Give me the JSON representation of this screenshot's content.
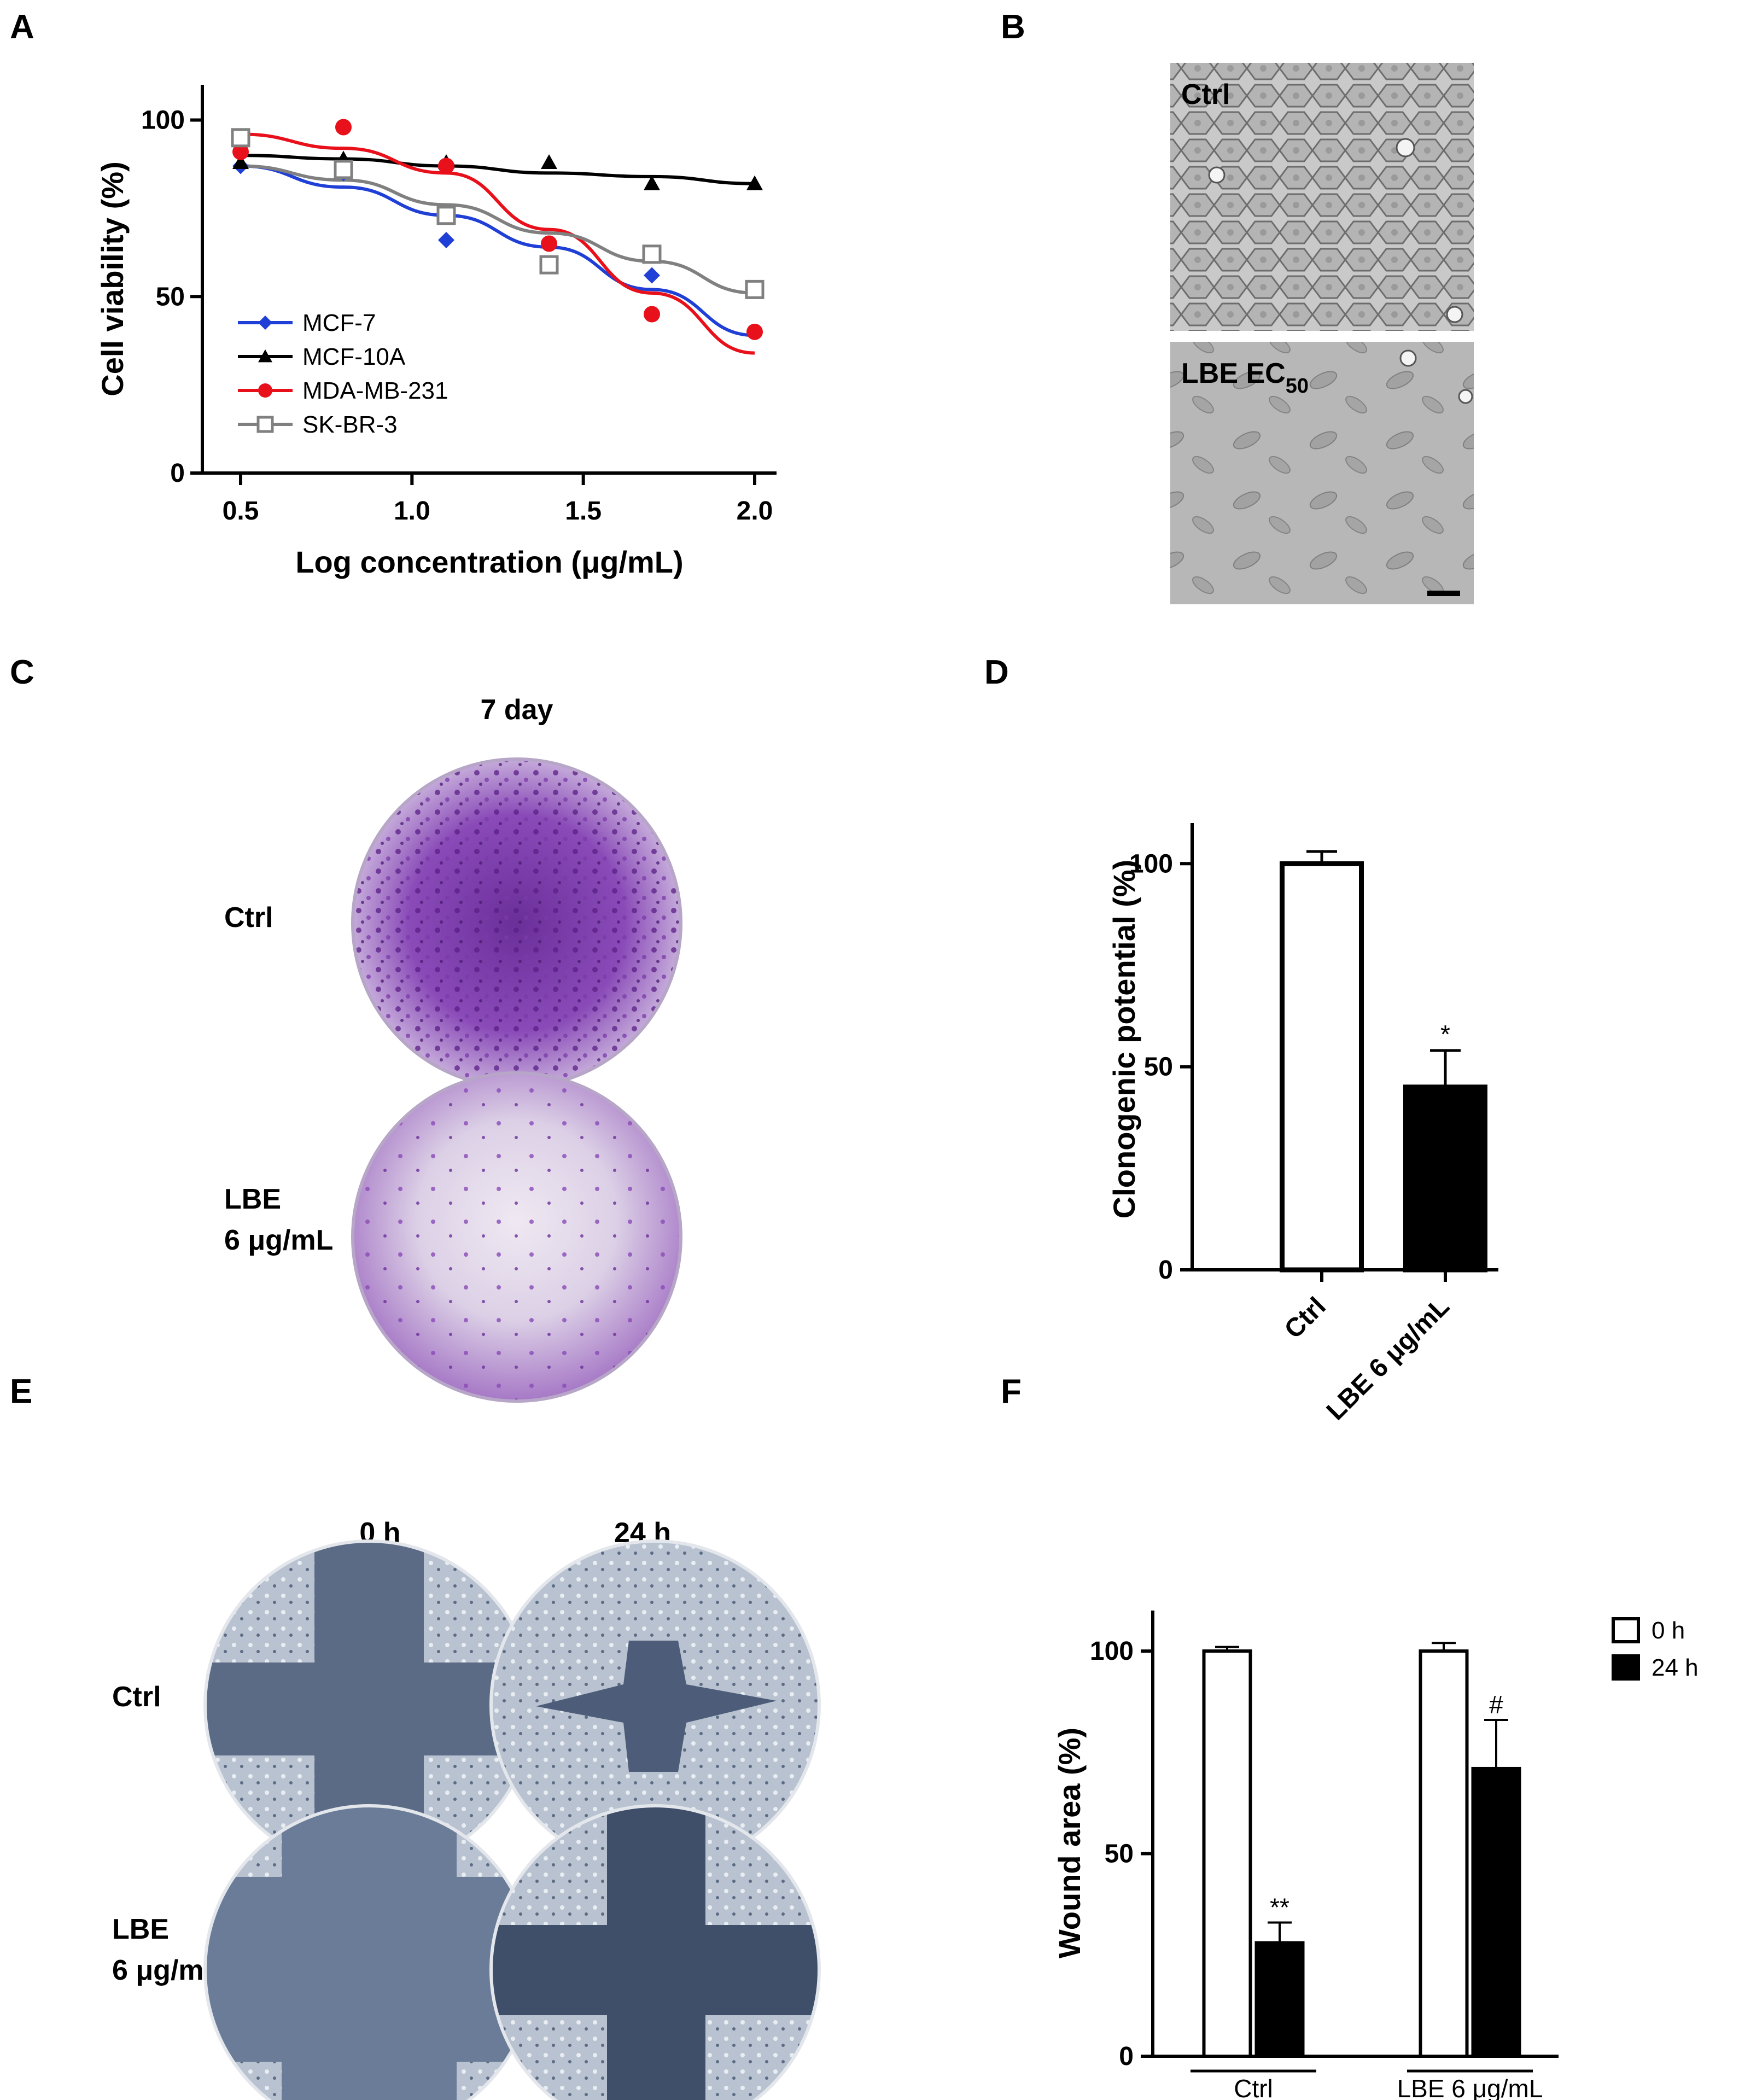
{
  "panels": [
    "A",
    "B",
    "C",
    "D",
    "E",
    "F"
  ],
  "colors": {
    "mcf7": "#1f3fd6",
    "mcf10a": "#000000",
    "mda": "#e8101a",
    "skbr3": "#808080"
  },
  "panel_b": {
    "ctrl_label": "Ctrl",
    "lbe_label": "LBE EC",
    "lbe_sub": "50"
  },
  "panel_c": {
    "title": "7 day",
    "row_ctrl": "Ctrl",
    "row_lbe_1": "LBE",
    "row_lbe_2": "6 μg/mL"
  },
  "panel_e": {
    "col_0h": "0 h",
    "col_24h": "24 h",
    "row_ctrl": "Ctrl",
    "row_lbe_1": "LBE",
    "row_lbe_2": "6 μg/mL"
  },
  "chart_data": [
    {
      "panel": "A",
      "type": "scatter",
      "xlabel": "Log concentration (μg/mL)",
      "ylabel": "Cell viability (%)",
      "xlim": [
        0.4,
        2.1
      ],
      "ylim": [
        0,
        110
      ],
      "xticks": [
        "0.5",
        "1.0",
        "1.5",
        "2.0"
      ],
      "yticks": [
        "0",
        "50",
        "100"
      ],
      "legend_position": "bottom-left",
      "x": [
        0.5,
        0.8,
        1.1,
        1.4,
        1.7,
        2.0
      ],
      "series": [
        {
          "name": "MCF-7",
          "marker": "diamond",
          "color": "#1f3fd6",
          "values": [
            87,
            85,
            66,
            59,
            56,
            40
          ],
          "fit": [
            87,
            81,
            73,
            64,
            52,
            39
          ]
        },
        {
          "name": "MCF-10A",
          "marker": "triangle",
          "color": "#000000",
          "values": [
            88,
            89,
            88,
            88,
            82,
            82
          ],
          "fit": [
            90,
            89,
            87,
            85,
            84,
            82
          ]
        },
        {
          "name": "MDA-MB-231",
          "marker": "circle",
          "color": "#e8101a",
          "values": [
            91,
            98,
            87,
            65,
            45,
            40
          ],
          "fit": [
            96,
            92,
            85,
            69,
            51,
            34
          ]
        },
        {
          "name": "SK-BR-3",
          "marker": "square-open",
          "color": "#808080",
          "values": [
            95,
            86,
            73,
            59,
            62,
            52
          ],
          "fit": [
            87,
            83,
            76,
            68,
            60,
            51
          ]
        }
      ]
    },
    {
      "panel": "D",
      "type": "bar",
      "ylabel": "Clonogenic potential (%)",
      "ylim": [
        0,
        110
      ],
      "yticks": [
        "0",
        "50",
        "100"
      ],
      "categories": [
        "Ctrl",
        "LBE 6 μg/mL"
      ],
      "values": [
        100,
        45
      ],
      "errors": [
        3,
        9
      ],
      "fills": [
        "#ffffff",
        "#000000"
      ],
      "annotations": [
        "",
        "*"
      ]
    },
    {
      "panel": "F",
      "type": "bar",
      "ylabel": "Wound area (%)",
      "ylim": [
        0,
        110
      ],
      "yticks": [
        "0",
        "50",
        "100"
      ],
      "categories": [
        "Ctrl",
        "LBE 6 μg/mL"
      ],
      "legend_position": "top-right",
      "series": [
        {
          "name": "0 h",
          "values": [
            100,
            100
          ],
          "errors": [
            1,
            2
          ],
          "fill": "#ffffff",
          "annotations": [
            "",
            ""
          ]
        },
        {
          "name": "24 h",
          "values": [
            28,
            71
          ],
          "errors": [
            5,
            12
          ],
          "fill": "#000000",
          "annotations": [
            "**",
            "#"
          ]
        }
      ]
    }
  ]
}
